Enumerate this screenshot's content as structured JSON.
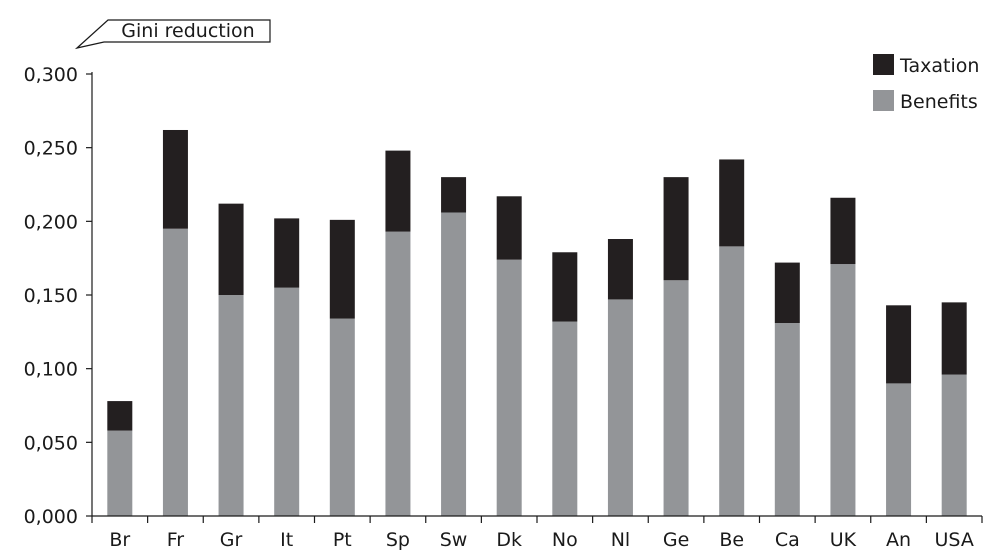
{
  "chart_data": {
    "type": "bar",
    "stacked": true,
    "ylabel": "Gini reduction",
    "categories": [
      "Br",
      "Fr",
      "Gr",
      "It",
      "Pt",
      "Sp",
      "Sw",
      "Dk",
      "No",
      "Nl",
      "Ge",
      "Be",
      "Ca",
      "UK",
      "An",
      "USA"
    ],
    "series": [
      {
        "name": "Benefits",
        "color": "#939598",
        "values": [
          0.058,
          0.195,
          0.15,
          0.155,
          0.134,
          0.193,
          0.206,
          0.174,
          0.132,
          0.147,
          0.16,
          0.183,
          0.131,
          0.171,
          0.09,
          0.096
        ]
      },
      {
        "name": "Taxation",
        "color": "#231f20",
        "values": [
          0.02,
          0.067,
          0.062,
          0.047,
          0.067,
          0.055,
          0.024,
          0.043,
          0.047,
          0.041,
          0.07,
          0.059,
          0.041,
          0.045,
          0.053,
          0.049
        ]
      }
    ],
    "yticks": [
      "0,000",
      "0,050",
      "0,100",
      "0,150",
      "0,200",
      "0,250",
      "0,300"
    ],
    "ylim": [
      0,
      0.3
    ],
    "grid": false,
    "legend": {
      "placement": "top-right",
      "items": [
        "Taxation",
        "Benefits"
      ]
    }
  }
}
